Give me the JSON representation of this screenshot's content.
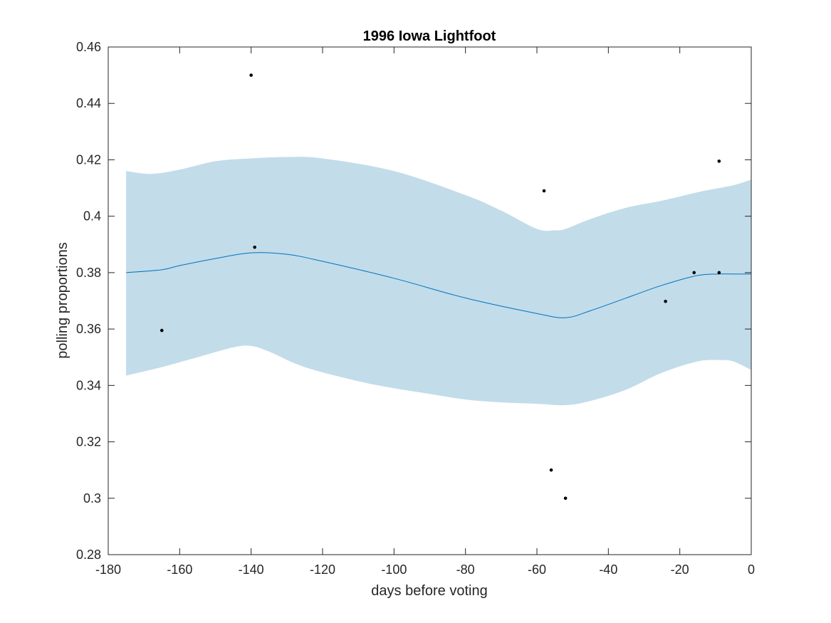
{
  "chart_data": {
    "type": "line",
    "title": "1996 Iowa Lightfoot",
    "xlabel": "days before voting",
    "ylabel": "polling proportions",
    "xlim": [
      -180,
      0
    ],
    "ylim": [
      0.28,
      0.46
    ],
    "xticks": [
      -180,
      -160,
      -140,
      -120,
      -100,
      -80,
      -60,
      -40,
      -20,
      0
    ],
    "xtick_labels": [
      "-180",
      "-160",
      "-140",
      "-120",
      "-100",
      "-80",
      "-60",
      "-40",
      "-20",
      "0"
    ],
    "yticks": [
      0.28,
      0.3,
      0.32,
      0.34,
      0.36,
      0.38,
      0.4,
      0.42,
      0.44,
      0.46
    ],
    "ytick_labels": [
      "0.28",
      "0.3",
      "0.32",
      "0.34",
      "0.36",
      "0.38",
      "0.4",
      "0.42",
      "0.44",
      "0.46"
    ],
    "grid": false,
    "colors": {
      "band": "#c2dcea",
      "line": "#0072bd",
      "points": "#000000",
      "axes": "#262626"
    },
    "trend": {
      "x": [
        -175,
        -165,
        -160,
        -150,
        -140,
        -130,
        -120,
        -100,
        -80,
        -60,
        -52,
        -45,
        -35,
        -25,
        -15,
        -9,
        -5,
        0
      ],
      "y": [
        0.38,
        0.381,
        0.3825,
        0.385,
        0.387,
        0.3865,
        0.384,
        0.378,
        0.371,
        0.3655,
        0.364,
        0.3665,
        0.371,
        0.3755,
        0.379,
        0.3795,
        0.3795,
        0.3795
      ]
    },
    "band_upper": {
      "x": [
        -175,
        -168,
        -160,
        -150,
        -140,
        -130,
        -120,
        -100,
        -80,
        -70,
        -60,
        -55,
        -52,
        -45,
        -35,
        -25,
        -15,
        -5,
        0
      ],
      "y": [
        0.416,
        0.415,
        0.4165,
        0.4195,
        0.4205,
        0.421,
        0.4205,
        0.416,
        0.4075,
        0.402,
        0.3955,
        0.395,
        0.3955,
        0.399,
        0.403,
        0.4055,
        0.4085,
        0.411,
        0.413
      ]
    },
    "band_lower": {
      "x": [
        -175,
        -165,
        -155,
        -145,
        -140,
        -135,
        -125,
        -110,
        -100,
        -90,
        -80,
        -70,
        -60,
        -52,
        -45,
        -35,
        -25,
        -15,
        -9,
        -5,
        0
      ],
      "y": [
        0.3435,
        0.3465,
        0.35,
        0.3535,
        0.354,
        0.352,
        0.3465,
        0.3415,
        0.339,
        0.337,
        0.335,
        0.334,
        0.3335,
        0.333,
        0.3345,
        0.3385,
        0.3445,
        0.3485,
        0.349,
        0.3485,
        0.3455
      ]
    },
    "points": {
      "x": [
        -165,
        -140,
        -139,
        -58,
        -56,
        -52,
        -24,
        -16,
        -9,
        -9
      ],
      "y": [
        0.3595,
        0.45,
        0.389,
        0.409,
        0.31,
        0.3,
        0.3698,
        0.38,
        0.38,
        0.4195
      ]
    }
  }
}
